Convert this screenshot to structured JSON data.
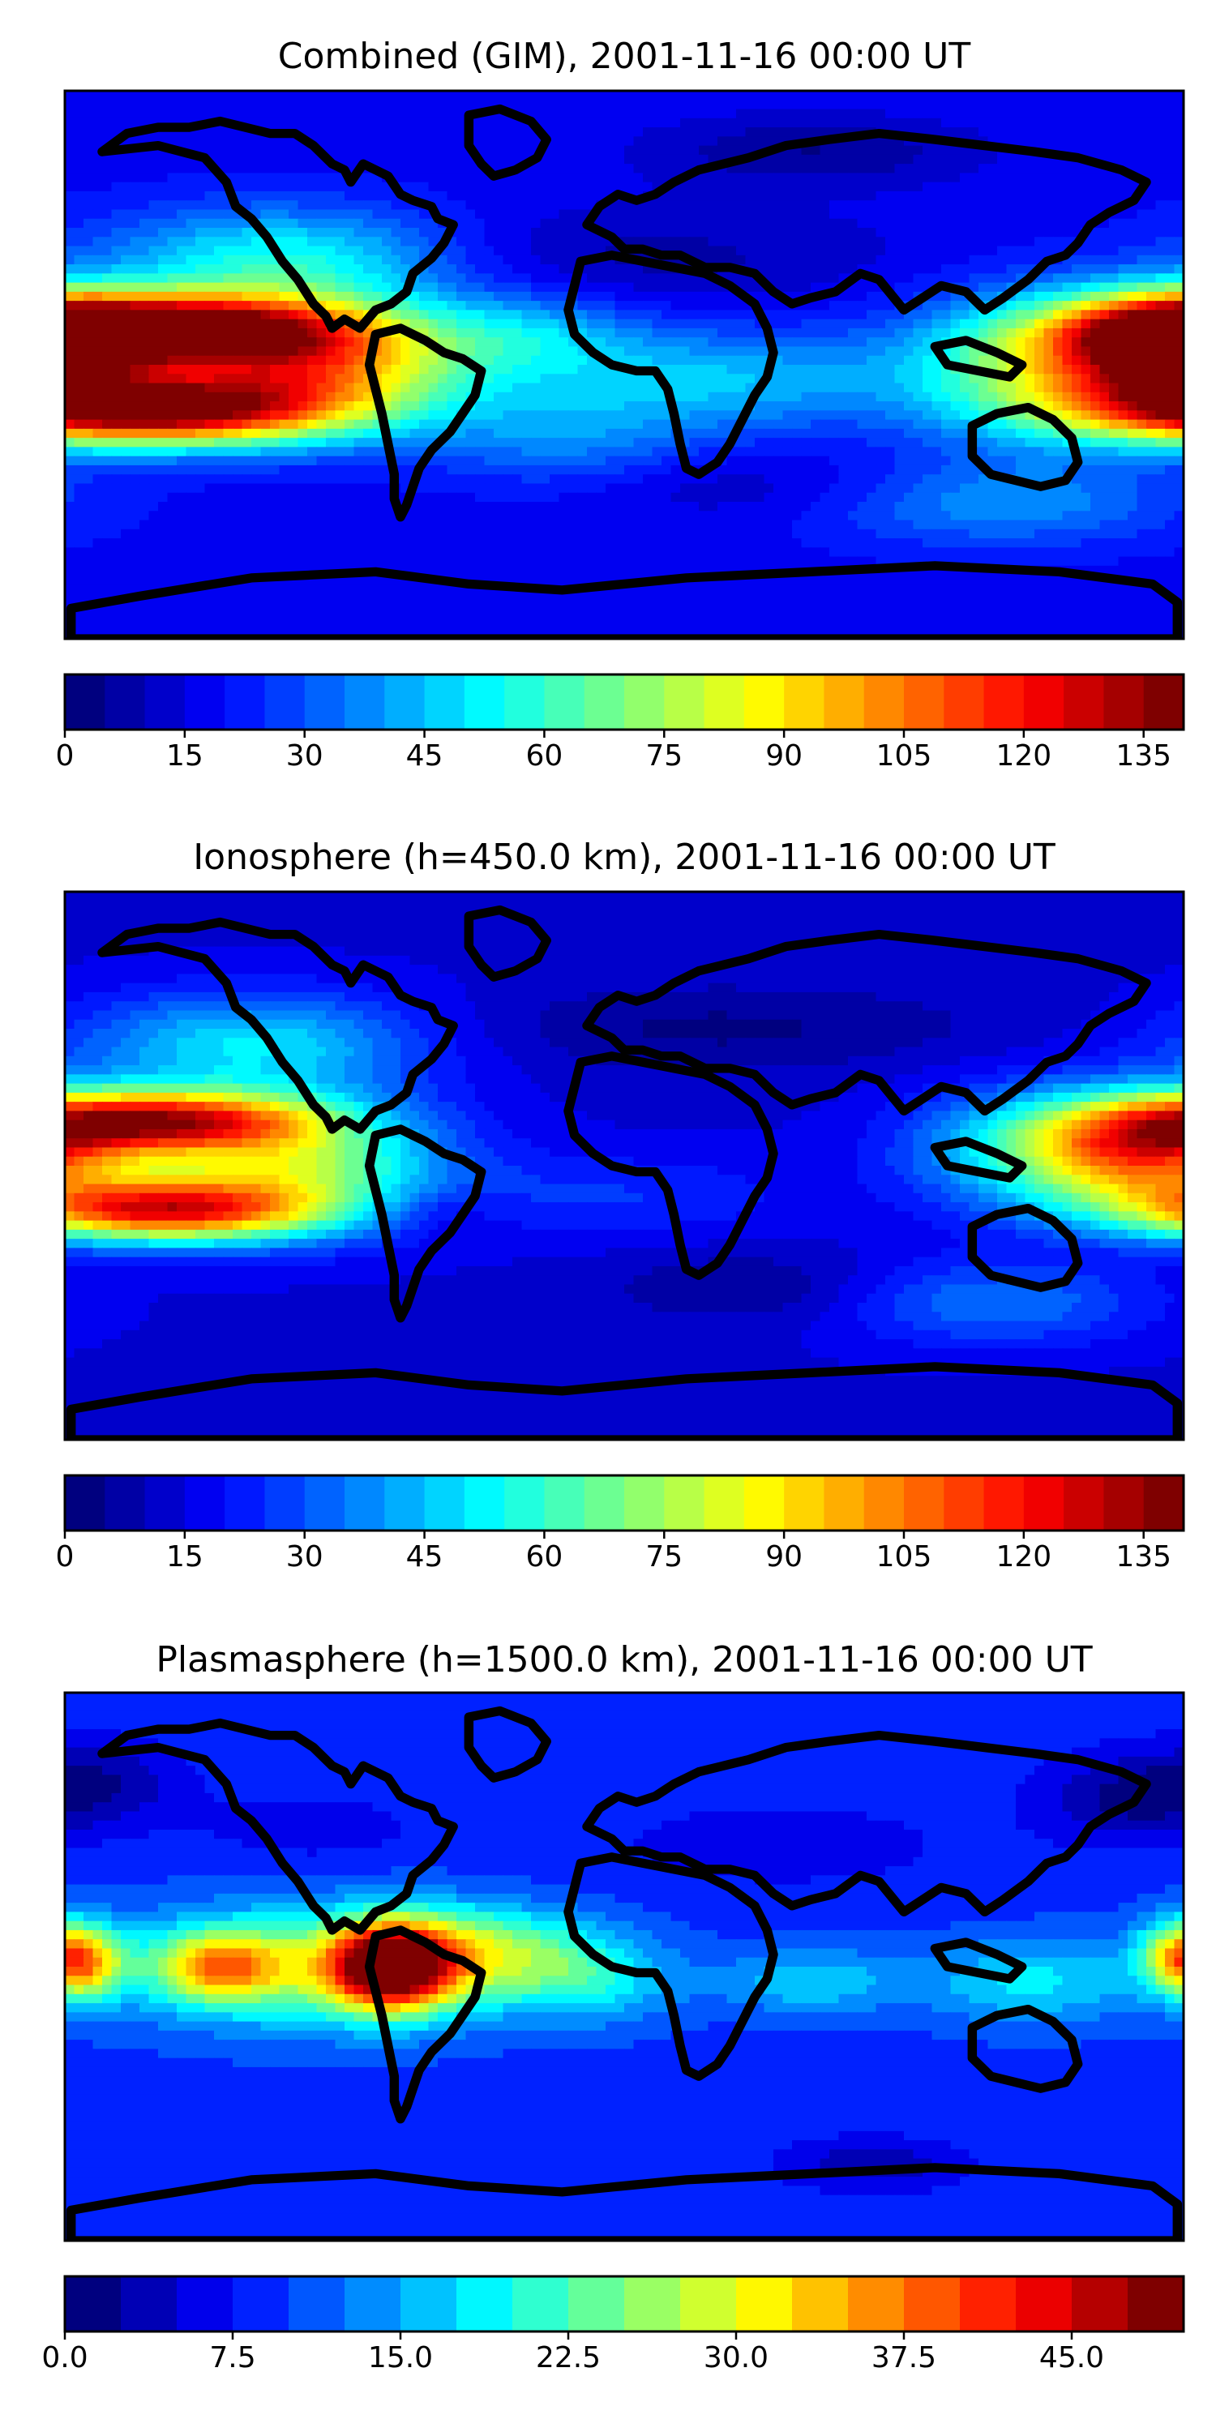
{
  "chart_data": [
    {
      "type": "heatmap",
      "title": "Combined (GIM), 2001-11-16 00:00 UT",
      "xlabel": "",
      "ylabel": "",
      "colorbar": {
        "min": 0,
        "max": 140,
        "levels": 28,
        "ticks": [
          0,
          15,
          30,
          45,
          60,
          75,
          90,
          105,
          120,
          135
        ],
        "tick_labels": [
          "0",
          "15",
          "30",
          "45",
          "60",
          "75",
          "90",
          "105",
          "120",
          "135"
        ]
      },
      "background_value": 18,
      "features": [
        {
          "lon": -150,
          "lat": 12,
          "value": 135,
          "spread_lon": 40,
          "spread_lat": 8
        },
        {
          "lon": -155,
          "lat": -15,
          "value": 135,
          "spread_lon": 40,
          "spread_lat": 8
        },
        {
          "lon": -100,
          "lat": 0,
          "value": 95,
          "spread_lon": 35,
          "spread_lat": 14
        },
        {
          "lon": -110,
          "lat": 35,
          "value": 55,
          "spread_lon": 40,
          "spread_lat": 12
        },
        {
          "lon": 175,
          "lat": 5,
          "value": 110,
          "spread_lon": 22,
          "spread_lat": 12
        },
        {
          "lon": 135,
          "lat": 0,
          "value": 70,
          "spread_lon": 30,
          "spread_lat": 16
        },
        {
          "lon": 30,
          "lat": -5,
          "value": 45,
          "spread_lon": 45,
          "spread_lat": 12
        },
        {
          "lon": -20,
          "lat": -25,
          "value": 35,
          "spread_lon": 30,
          "spread_lat": 12
        },
        {
          "lon": -30,
          "lat": 10,
          "value": 40,
          "spread_lon": 25,
          "spread_lat": 10
        },
        {
          "lon": 120,
          "lat": -45,
          "value": 40,
          "spread_lon": 40,
          "spread_lat": 10
        },
        {
          "lon": 60,
          "lat": 70,
          "value": 5,
          "spread_lon": 35,
          "spread_lat": 8
        },
        {
          "lon": 40,
          "lat": -40,
          "value": 10,
          "spread_lon": 50,
          "spread_lat": 8
        },
        {
          "lon": 0,
          "lat": 35,
          "value": 8,
          "spread_lon": 60,
          "spread_lat": 12
        }
      ]
    },
    {
      "type": "heatmap",
      "title": "Ionosphere  (h=450.0 km), 2001-11-16 00:00 UT",
      "xlabel": "",
      "ylabel": "",
      "colorbar": {
        "min": 0,
        "max": 140,
        "levels": 28,
        "ticks": [
          0,
          15,
          30,
          45,
          60,
          75,
          90,
          105,
          120,
          135
        ],
        "tick_labels": [
          "0",
          "15",
          "30",
          "45",
          "60",
          "75",
          "90",
          "105",
          "120",
          "135"
        ]
      },
      "background_value": 14,
      "features": [
        {
          "lon": -150,
          "lat": 15,
          "value": 105,
          "spread_lon": 35,
          "spread_lat": 7
        },
        {
          "lon": -150,
          "lat": -15,
          "value": 105,
          "spread_lon": 35,
          "spread_lat": 7
        },
        {
          "lon": -110,
          "lat": 0,
          "value": 75,
          "spread_lon": 35,
          "spread_lat": 14
        },
        {
          "lon": -120,
          "lat": 40,
          "value": 50,
          "spread_lon": 40,
          "spread_lat": 12
        },
        {
          "lon": 170,
          "lat": 5,
          "value": 85,
          "spread_lon": 25,
          "spread_lat": 12
        },
        {
          "lon": 135,
          "lat": 5,
          "value": 55,
          "spread_lon": 30,
          "spread_lat": 14
        },
        {
          "lon": -60,
          "lat": -15,
          "value": 5,
          "spread_lon": 15,
          "spread_lat": 6
        },
        {
          "lon": 30,
          "lat": 45,
          "value": 4,
          "spread_lon": 60,
          "spread_lat": 10
        },
        {
          "lon": 40,
          "lat": -40,
          "value": 4,
          "spread_lon": 30,
          "spread_lat": 8
        },
        {
          "lon": 0,
          "lat": -10,
          "value": 25,
          "spread_lon": 40,
          "spread_lat": 10
        },
        {
          "lon": 120,
          "lat": -45,
          "value": 35,
          "spread_lon": 35,
          "spread_lat": 10
        }
      ]
    },
    {
      "type": "heatmap",
      "title": "Plasmasphere (h=1500.0 km), 2001-11-16 00:00 UT",
      "xlabel": "",
      "ylabel": "",
      "colorbar": {
        "min": 0,
        "max": 50,
        "levels": 20,
        "ticks": [
          0.0,
          7.5,
          15.0,
          22.5,
          30.0,
          37.5,
          45.0
        ],
        "tick_labels": [
          "0.0",
          "7.5",
          "15.0",
          "22.5",
          "30.0",
          "37.5",
          "45.0"
        ]
      },
      "background_value": 9,
      "features": [
        {
          "lon": -75,
          "lat": 0,
          "value": 45,
          "spread_lon": 14,
          "spread_lat": 10
        },
        {
          "lon": -130,
          "lat": 0,
          "value": 28,
          "spread_lon": 14,
          "spread_lat": 8
        },
        {
          "lon": -175,
          "lat": 0,
          "value": 25,
          "spread_lon": 10,
          "spread_lat": 8
        },
        {
          "lon": 180,
          "lat": 5,
          "value": 25,
          "spread_lon": 10,
          "spread_lat": 8
        },
        {
          "lon": -100,
          "lat": 0,
          "value": 24,
          "spread_lon": 45,
          "spread_lat": 14
        },
        {
          "lon": -45,
          "lat": 5,
          "value": 22,
          "spread_lon": 25,
          "spread_lat": 10
        },
        {
          "lon": -10,
          "lat": -5,
          "value": 17,
          "spread_lon": 20,
          "spread_lat": 10
        },
        {
          "lon": 60,
          "lat": -5,
          "value": 17,
          "spread_lon": 20,
          "spread_lat": 8
        },
        {
          "lon": 130,
          "lat": -5,
          "value": 18,
          "spread_lon": 25,
          "spread_lat": 10
        },
        {
          "lon": -170,
          "lat": 60,
          "value": 3,
          "spread_lon": 20,
          "spread_lat": 10
        },
        {
          "lon": 160,
          "lat": 55,
          "value": 3,
          "spread_lon": 20,
          "spread_lat": 10
        },
        {
          "lon": 80,
          "lat": -65,
          "value": 3,
          "spread_lon": 20,
          "spread_lat": 6
        },
        {
          "lon": -100,
          "lat": 45,
          "value": 6,
          "spread_lon": 25,
          "spread_lat": 8
        },
        {
          "lon": 50,
          "lat": 40,
          "value": 6,
          "spread_lon": 40,
          "spread_lat": 10
        }
      ]
    }
  ],
  "colormap": [
    "#00007f",
    "#0000ff",
    "#007fff",
    "#00ffff",
    "#7fff7f",
    "#ffff00",
    "#ff7f00",
    "#ff0000",
    "#7f0000"
  ]
}
